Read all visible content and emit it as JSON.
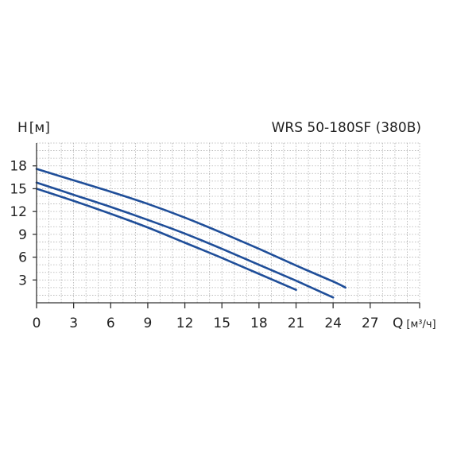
{
  "chart_data": {
    "type": "line",
    "title": "WRS 50-180SF (380В)",
    "ylabel_main": "H",
    "ylabel_unit": "[м]",
    "xlabel_main": "Q",
    "xlabel_unit": "[м³/ч]",
    "xlim": [
      0,
      31
    ],
    "ylim": [
      0,
      21
    ],
    "x_ticks": [
      0,
      3,
      6,
      9,
      12,
      15,
      18,
      21,
      24,
      27
    ],
    "y_ticks": [
      3,
      6,
      9,
      12,
      15,
      18
    ],
    "grid": true,
    "line_color": "#1f4e99",
    "series": [
      {
        "x": [
          0,
          3,
          6,
          9,
          12,
          15,
          18,
          21,
          24,
          25
        ],
        "y": [
          17.6,
          16.1,
          14.6,
          13.0,
          11.2,
          9.2,
          7.1,
          4.9,
          2.8,
          2.0
        ]
      },
      {
        "x": [
          0,
          3,
          6,
          9,
          12,
          15,
          18,
          21,
          24
        ],
        "y": [
          15.8,
          14.2,
          12.6,
          10.9,
          9.1,
          7.1,
          5.0,
          2.9,
          0.7
        ]
      },
      {
        "x": [
          0,
          3,
          6,
          9,
          12,
          15,
          18,
          21
        ],
        "y": [
          15.0,
          13.4,
          11.7,
          9.9,
          7.9,
          5.9,
          3.8,
          1.7
        ]
      }
    ]
  }
}
